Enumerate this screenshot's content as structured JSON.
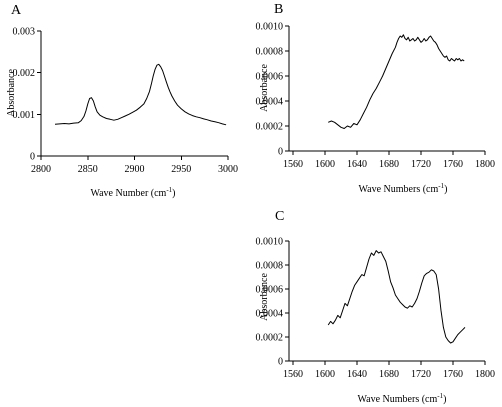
{
  "chart_data": [
    {
      "type": "line",
      "panel_label": "A",
      "xlabel": "Wave Number (cm",
      "xlabel_sup": "-1",
      "xlabel_end": ")",
      "ylabel": "Absorbance",
      "xlim": [
        2800,
        3000
      ],
      "ylim": [
        0,
        0.003
      ],
      "xticks": [
        2800,
        2850,
        2900,
        2950,
        3000
      ],
      "yticks": [
        0,
        0.001,
        0.002,
        0.003
      ],
      "xtick_labels": [
        "2800",
        "2850",
        "2900",
        "2950",
        "3000"
      ],
      "ytick_labels": [
        "0",
        "0.001",
        "0.002",
        "0.003"
      ],
      "grid": false,
      "series": [
        {
          "x": [
            2815,
            2820,
            2825,
            2830,
            2835,
            2840,
            2843,
            2846,
            2848,
            2850,
            2852,
            2854,
            2856,
            2858,
            2860,
            2863,
            2866,
            2870,
            2874,
            2878,
            2882,
            2886,
            2890,
            2894,
            2898,
            2902,
            2906,
            2910,
            2913,
            2916,
            2918,
            2920,
            2922,
            2924,
            2926,
            2928,
            2930,
            2932,
            2934,
            2936,
            2938,
            2940,
            2943,
            2946,
            2950,
            2954,
            2958,
            2962,
            2966,
            2970,
            2974,
            2978,
            2982,
            2986,
            2990,
            2994,
            2998
          ],
          "y": [
            0.00076,
            0.00077,
            0.00078,
            0.00077,
            0.00079,
            0.0008,
            0.00085,
            0.00095,
            0.00108,
            0.00125,
            0.00138,
            0.0014,
            0.00132,
            0.00118,
            0.00106,
            0.00098,
            0.00094,
            0.0009,
            0.00088,
            0.00086,
            0.00088,
            0.00092,
            0.00096,
            0.001,
            0.00105,
            0.0011,
            0.00117,
            0.00125,
            0.00138,
            0.00155,
            0.00172,
            0.00192,
            0.00208,
            0.00218,
            0.0022,
            0.00214,
            0.00205,
            0.00192,
            0.00178,
            0.00165,
            0.00154,
            0.00144,
            0.00132,
            0.00122,
            0.00113,
            0.00106,
            0.00101,
            0.00097,
            0.00094,
            0.00092,
            0.00089,
            0.00087,
            0.00084,
            0.00082,
            0.0008,
            0.00077,
            0.00075
          ]
        }
      ]
    },
    {
      "type": "line",
      "panel_label": "B",
      "xlabel": "Wave Numbers (cm",
      "xlabel_sup": "-1",
      "xlabel_end": ")",
      "ylabel": "Absorbance",
      "xlim": [
        1560,
        1800
      ],
      "ylim": [
        0,
        0.001
      ],
      "xticks": [
        1560,
        1600,
        1640,
        1680,
        1720,
        1760,
        1800
      ],
      "yticks": [
        0,
        0.0002,
        0.0004,
        0.0006,
        0.0008,
        0.001
      ],
      "xtick_labels": [
        "1560",
        "1600",
        "1640",
        "1680",
        "1720",
        "1760",
        "1800"
      ],
      "ytick_labels": [
        "0",
        "0.0002",
        "0.0004",
        "0.0006",
        "0.0008",
        "0.0010"
      ],
      "grid": false,
      "series": [
        {
          "x": [
            1604,
            1608,
            1612,
            1616,
            1620,
            1624,
            1628,
            1632,
            1636,
            1640,
            1644,
            1648,
            1652,
            1656,
            1660,
            1664,
            1668,
            1672,
            1676,
            1680,
            1684,
            1688,
            1690,
            1692,
            1694,
            1696,
            1698,
            1700,
            1702,
            1704,
            1706,
            1708,
            1710,
            1712,
            1714,
            1716,
            1718,
            1720,
            1722,
            1724,
            1726,
            1728,
            1730,
            1732,
            1734,
            1736,
            1738,
            1740,
            1742,
            1744,
            1746,
            1748,
            1750,
            1752,
            1754,
            1756,
            1758,
            1760,
            1762,
            1764,
            1766,
            1768,
            1770,
            1772,
            1774
          ],
          "y": [
            0.00023,
            0.00024,
            0.00023,
            0.00021,
            0.00019,
            0.00018,
            0.0002,
            0.00019,
            0.00022,
            0.00021,
            0.00025,
            0.0003,
            0.00035,
            0.00041,
            0.00046,
            0.0005,
            0.00055,
            0.0006,
            0.00066,
            0.00072,
            0.00078,
            0.00083,
            0.00087,
            0.0009,
            0.00092,
            0.00091,
            0.00093,
            0.0009,
            0.00089,
            0.00091,
            0.00088,
            0.00089,
            0.0009,
            0.00088,
            0.00089,
            0.00091,
            0.00089,
            0.00087,
            0.00088,
            0.0009,
            0.00088,
            0.00089,
            0.00091,
            0.00092,
            0.0009,
            0.00088,
            0.00087,
            0.00085,
            0.00082,
            0.0008,
            0.00078,
            0.00076,
            0.00075,
            0.00076,
            0.00073,
            0.00072,
            0.00074,
            0.00073,
            0.00072,
            0.00074,
            0.00073,
            0.00074,
            0.00072,
            0.00073,
            0.00072
          ]
        }
      ]
    },
    {
      "type": "line",
      "panel_label": "C",
      "xlabel": "Wave Numbers (cm",
      "xlabel_sup": "-1",
      "xlabel_end": ")",
      "ylabel": "Absorbance",
      "xlim": [
        1560,
        1800
      ],
      "ylim": [
        0,
        0.001
      ],
      "xticks": [
        1560,
        1600,
        1640,
        1680,
        1720,
        1760,
        1800
      ],
      "yticks": [
        0,
        0.0002,
        0.0004,
        0.0006,
        0.0008,
        0.001
      ],
      "xtick_labels": [
        "1560",
        "1600",
        "1640",
        "1680",
        "1720",
        "1760",
        "1800"
      ],
      "ytick_labels": [
        "0",
        "0.0002",
        "0.0004",
        "0.0006",
        "0.0008",
        "0.0010"
      ],
      "grid": false,
      "series": [
        {
          "x": [
            1604,
            1607,
            1610,
            1613,
            1616,
            1619,
            1622,
            1625,
            1628,
            1631,
            1634,
            1637,
            1640,
            1643,
            1646,
            1649,
            1652,
            1655,
            1658,
            1661,
            1664,
            1667,
            1670,
            1673,
            1676,
            1679,
            1682,
            1685,
            1688,
            1691,
            1694,
            1697,
            1700,
            1703,
            1706,
            1709,
            1712,
            1715,
            1718,
            1721,
            1724,
            1727,
            1730,
            1733,
            1736,
            1739,
            1742,
            1745,
            1748,
            1751,
            1754,
            1757,
            1760,
            1763,
            1766,
            1769,
            1772,
            1775
          ],
          "y": [
            0.0003,
            0.00033,
            0.00031,
            0.00034,
            0.00038,
            0.00036,
            0.00042,
            0.00048,
            0.00046,
            0.00052,
            0.00058,
            0.00063,
            0.00066,
            0.00069,
            0.00072,
            0.00071,
            0.00078,
            0.00085,
            0.0009,
            0.00088,
            0.00092,
            0.0009,
            0.00091,
            0.00087,
            0.00083,
            0.00075,
            0.00066,
            0.00061,
            0.00055,
            0.00052,
            0.00049,
            0.00047,
            0.00045,
            0.00044,
            0.00046,
            0.00045,
            0.00048,
            0.00052,
            0.00058,
            0.00065,
            0.00071,
            0.00073,
            0.00074,
            0.00076,
            0.00075,
            0.00072,
            0.0006,
            0.00042,
            0.00028,
            0.0002,
            0.00017,
            0.00015,
            0.00016,
            0.00019,
            0.00022,
            0.00024,
            0.00026,
            0.00028
          ]
        }
      ]
    }
  ]
}
